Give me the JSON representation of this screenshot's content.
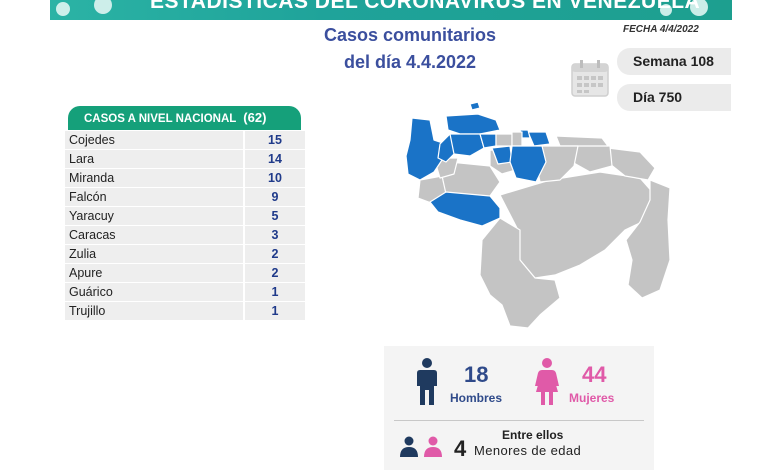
{
  "banner": {
    "title": "ESTADÍSTICAS DEL CORONAVIRUS EN VENEZUELA"
  },
  "date_label": "FECHA 4/4/2022",
  "headline": {
    "line1": "Casos comunitarios",
    "line2": "del día 4.4.2022"
  },
  "week": "Semana 108",
  "day": "Día 750",
  "national": {
    "header": "CASOS A NIVEL NACIONAL",
    "total": "(62)",
    "rows": [
      {
        "state": "Cojedes",
        "cases": "15"
      },
      {
        "state": "Lara",
        "cases": "14"
      },
      {
        "state": "Miranda",
        "cases": "10"
      },
      {
        "state": "Falcón",
        "cases": "9"
      },
      {
        "state": "Yaracuy",
        "cases": "5"
      },
      {
        "state": "Caracas",
        "cases": "3"
      },
      {
        "state": "Zulia",
        "cases": "2"
      },
      {
        "state": "Apure",
        "cases": "2"
      },
      {
        "state": "Guárico",
        "cases": "1"
      },
      {
        "state": "Trujillo",
        "cases": "1"
      }
    ]
  },
  "gender": {
    "men_count": "18",
    "men_label": "Hombres",
    "women_count": "44",
    "women_label": "Mujeres",
    "among_label": "Entre ellos",
    "minors_count": "4",
    "minors_label": "Menores de edad"
  },
  "colors": {
    "banner": "#1fa39a",
    "table_header": "#15a07a",
    "headline": "#3b4f9e",
    "map_affected": "#1a73c7",
    "map_other": "#c4c4c4",
    "men": "#1f3a5f",
    "women": "#e05aa8"
  }
}
